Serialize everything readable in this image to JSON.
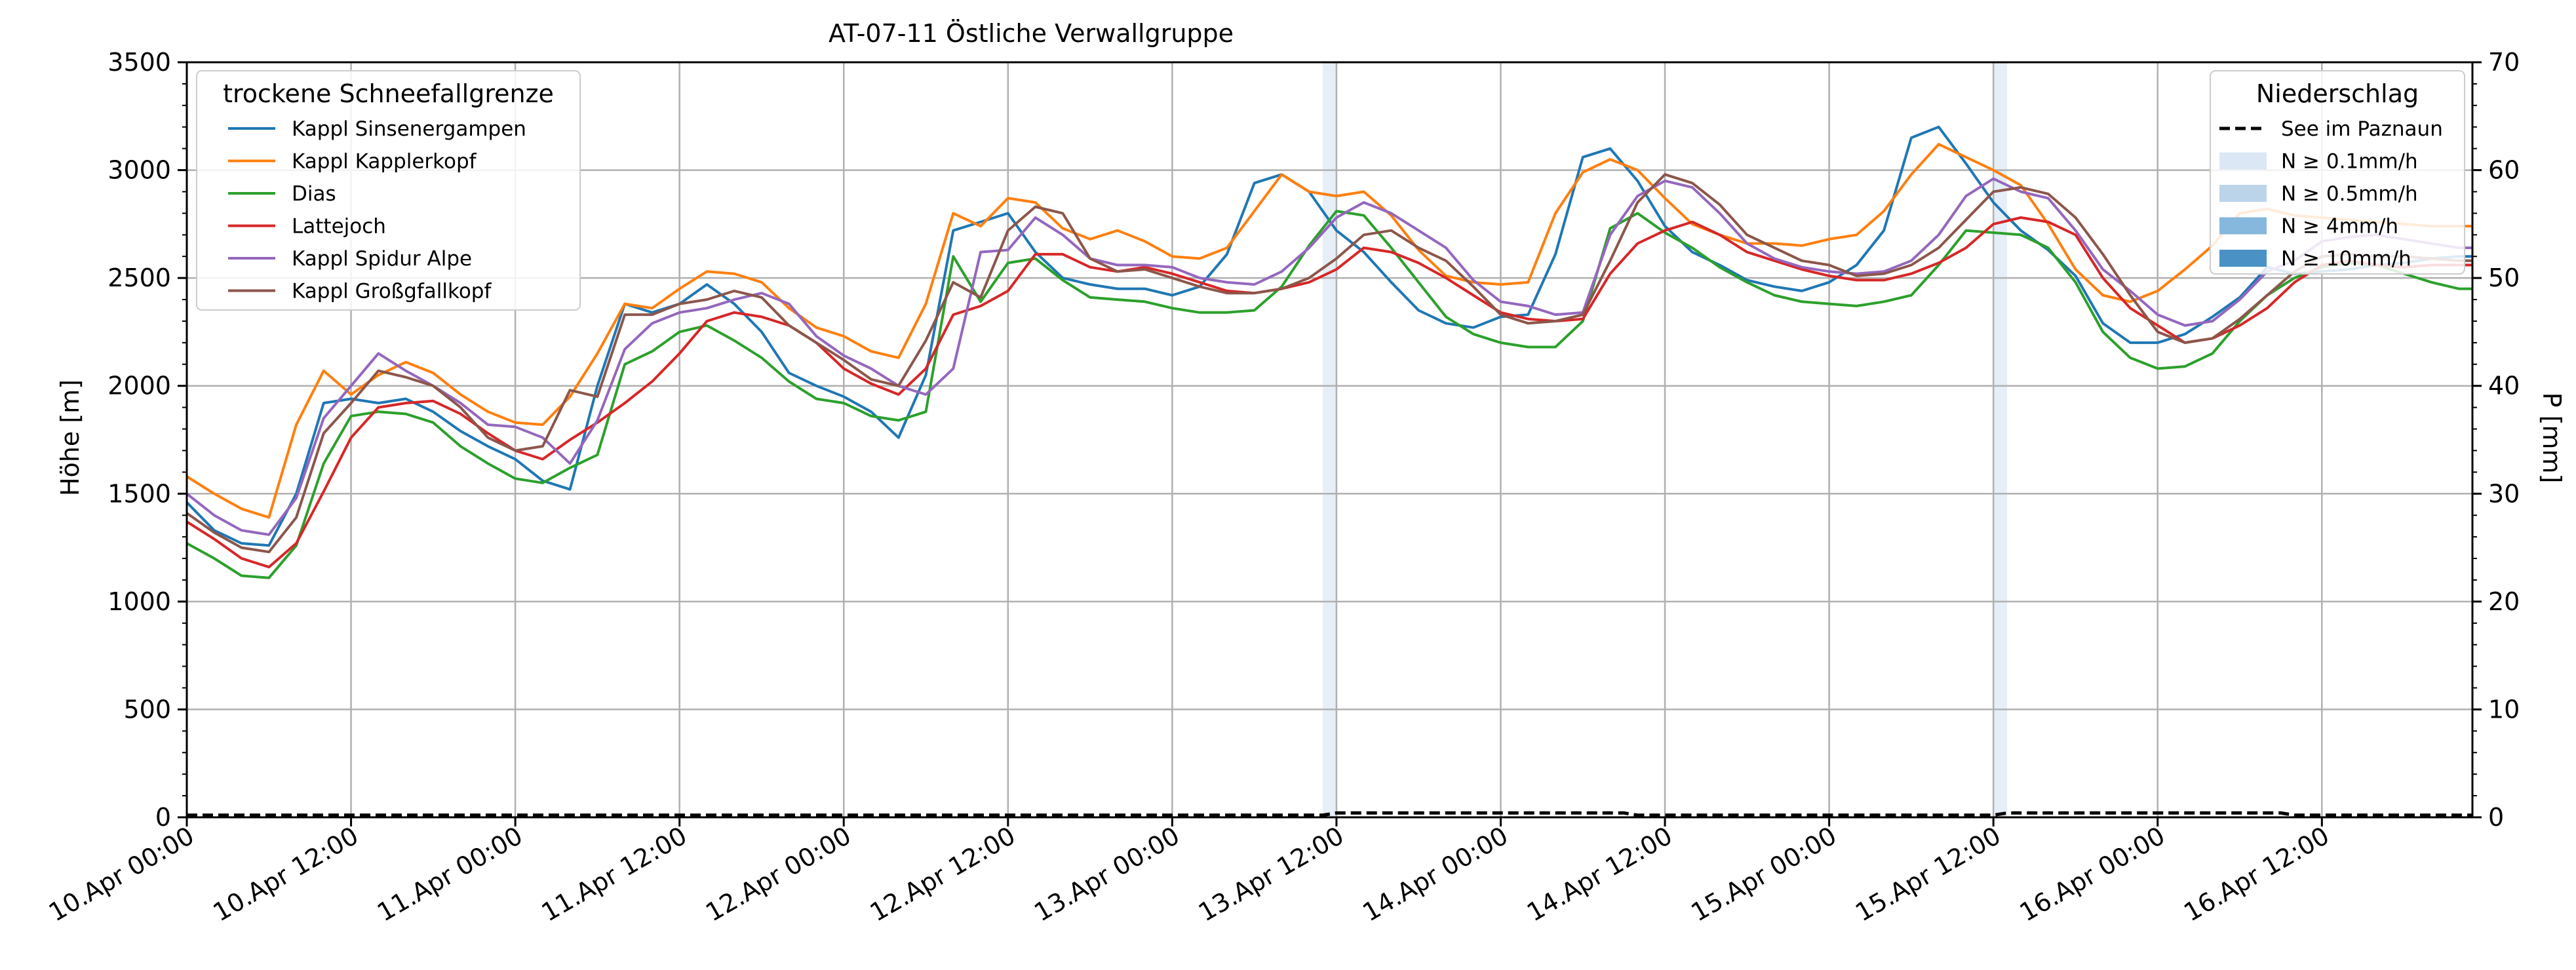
{
  "chart_data": {
    "type": "line",
    "title": "AT-07-11 Östliche Verwallgruppe",
    "ylabel": "Höhe [m]",
    "y2label": "P [mm]",
    "xlim": [
      "2024-04-10 00:00",
      "2024-04-16 23:00"
    ],
    "ylim": [
      0,
      3500
    ],
    "y2lim": [
      0,
      70
    ],
    "grid": true,
    "x_tick_labels": [
      "10.Apr 00:00",
      "10.Apr 12:00",
      "11.Apr 00:00",
      "11.Apr 12:00",
      "12.Apr 00:00",
      "12.Apr 12:00",
      "13.Apr 00:00",
      "13.Apr 12:00",
      "14.Apr 00:00",
      "14.Apr 12:00",
      "15.Apr 00:00",
      "15.Apr 12:00",
      "16.Apr 00:00",
      "16.Apr 12:00"
    ],
    "x_ticks": [
      "2024-04-10 00:00",
      "2024-04-10 12:00",
      "2024-04-11 00:00",
      "2024-04-11 12:00",
      "2024-04-12 00:00",
      "2024-04-12 12:00",
      "2024-04-13 00:00",
      "2024-04-13 12:00",
      "2024-04-14 00:00",
      "2024-04-14 12:00",
      "2024-04-15 00:00",
      "2024-04-15 12:00",
      "2024-04-16 00:00",
      "2024-04-16 12:00"
    ],
    "y_ticks": [
      0,
      500,
      1000,
      1500,
      2000,
      2500,
      3000,
      3500
    ],
    "y2_ticks": [
      0,
      10,
      20,
      30,
      40,
      50,
      60,
      70
    ],
    "legend_left": {
      "title": "trockene Schneefallgrenze",
      "placement": "upper-left"
    },
    "legend_right": {
      "title": "Niederschlag",
      "placement": "upper-right",
      "entries": [
        {
          "label": "See im Paznaun",
          "style": "dashed",
          "color": "#000000"
        },
        {
          "label": "N ≥ 0.1mm/h",
          "color": "#dbe7f4"
        },
        {
          "label": "N ≥ 0.5mm/h",
          "color": "#bcd4ea"
        },
        {
          "label": "N ≥ 4mm/h",
          "color": "#86b7dc"
        },
        {
          "label": "N ≥ 10mm/h",
          "color": "#4a92c6"
        }
      ]
    },
    "precip_bands": [
      {
        "start": "2024-04-13 11:00",
        "end": "2024-04-13 12:00",
        "class": "N ≥ 0.1mm/h"
      },
      {
        "start": "2024-04-15 12:00",
        "end": "2024-04-15 13:00",
        "class": "N ≥ 0.1mm/h"
      }
    ],
    "precip_series": {
      "name": "See im Paznaun",
      "x": [
        "2024-04-10 00:00",
        "2024-04-13 11:00",
        "2024-04-13 12:00",
        "2024-04-14 09:00",
        "2024-04-14 10:00",
        "2024-04-15 12:00",
        "2024-04-15 13:00",
        "2024-04-16 09:00",
        "2024-04-16 10:00",
        "2024-04-16 23:00"
      ],
      "values": [
        0.2,
        0.2,
        0.4,
        0.4,
        0.2,
        0.2,
        0.4,
        0.4,
        0.2,
        0.2
      ]
    },
    "x": [
      "2024-04-10 00:00",
      "2024-04-10 02:00",
      "2024-04-10 04:00",
      "2024-04-10 06:00",
      "2024-04-10 08:00",
      "2024-04-10 10:00",
      "2024-04-10 12:00",
      "2024-04-10 14:00",
      "2024-04-10 16:00",
      "2024-04-10 18:00",
      "2024-04-10 20:00",
      "2024-04-10 22:00",
      "2024-04-11 00:00",
      "2024-04-11 02:00",
      "2024-04-11 04:00",
      "2024-04-11 06:00",
      "2024-04-11 08:00",
      "2024-04-11 10:00",
      "2024-04-11 12:00",
      "2024-04-11 14:00",
      "2024-04-11 16:00",
      "2024-04-11 18:00",
      "2024-04-11 20:00",
      "2024-04-11 22:00",
      "2024-04-12 00:00",
      "2024-04-12 02:00",
      "2024-04-12 04:00",
      "2024-04-12 06:00",
      "2024-04-12 08:00",
      "2024-04-12 10:00",
      "2024-04-12 12:00",
      "2024-04-12 14:00",
      "2024-04-12 16:00",
      "2024-04-12 18:00",
      "2024-04-12 20:00",
      "2024-04-12 22:00",
      "2024-04-13 00:00",
      "2024-04-13 02:00",
      "2024-04-13 04:00",
      "2024-04-13 06:00",
      "2024-04-13 08:00",
      "2024-04-13 10:00",
      "2024-04-13 12:00",
      "2024-04-13 14:00",
      "2024-04-13 16:00",
      "2024-04-13 18:00",
      "2024-04-13 20:00",
      "2024-04-13 22:00",
      "2024-04-14 00:00",
      "2024-04-14 02:00",
      "2024-04-14 04:00",
      "2024-04-14 06:00",
      "2024-04-14 08:00",
      "2024-04-14 10:00",
      "2024-04-14 12:00",
      "2024-04-14 14:00",
      "2024-04-14 16:00",
      "2024-04-14 18:00",
      "2024-04-14 20:00",
      "2024-04-14 22:00",
      "2024-04-15 00:00",
      "2024-04-15 02:00",
      "2024-04-15 04:00",
      "2024-04-15 06:00",
      "2024-04-15 08:00",
      "2024-04-15 10:00",
      "2024-04-15 12:00",
      "2024-04-15 14:00",
      "2024-04-15 16:00",
      "2024-04-15 18:00",
      "2024-04-15 20:00",
      "2024-04-15 22:00",
      "2024-04-16 00:00",
      "2024-04-16 02:00",
      "2024-04-16 04:00",
      "2024-04-16 06:00",
      "2024-04-16 08:00",
      "2024-04-16 10:00",
      "2024-04-16 12:00",
      "2024-04-16 14:00",
      "2024-04-16 16:00",
      "2024-04-16 18:00",
      "2024-04-16 20:00",
      "2024-04-16 22:00",
      "2024-04-16 23:00"
    ],
    "series": [
      {
        "name": "Kappl Sinsenergampen",
        "color": "#1f77b4",
        "values": [
          1460,
          1330,
          1270,
          1260,
          1500,
          1920,
          1940,
          1920,
          1940,
          1880,
          1790,
          1720,
          1660,
          1560,
          1520,
          2000,
          2380,
          2340,
          2380,
          2470,
          2380,
          2250,
          2060,
          2000,
          1950,
          1880,
          1760,
          2050,
          2720,
          2760,
          2800,
          2620,
          2500,
          2470,
          2450,
          2450,
          2420,
          2460,
          2610,
          2940,
          2980,
          2900,
          2720,
          2620,
          2480,
          2350,
          2290,
          2270,
          2320,
          2330,
          2610,
          3060,
          3100,
          2950,
          2740,
          2620,
          2560,
          2490,
          2460,
          2440,
          2480,
          2560,
          2720,
          3150,
          3200,
          3030,
          2850,
          2720,
          2630,
          2510,
          2290,
          2200,
          2200,
          2240,
          2320,
          2410,
          2550,
          2520,
          2530,
          2540,
          2560,
          2570,
          2590,
          2600,
          2600
        ]
      },
      {
        "name": "Kappl Kapplerkopf",
        "color": "#ff7f0e",
        "values": [
          1580,
          1500,
          1430,
          1390,
          1820,
          2070,
          1960,
          2050,
          2110,
          2060,
          1960,
          1880,
          1830,
          1820,
          1950,
          2150,
          2380,
          2360,
          2450,
          2530,
          2520,
          2480,
          2360,
          2270,
          2230,
          2160,
          2130,
          2380,
          2800,
          2740,
          2870,
          2850,
          2730,
          2680,
          2720,
          2670,
          2600,
          2590,
          2640,
          2810,
          2980,
          2900,
          2880,
          2900,
          2790,
          2630,
          2510,
          2480,
          2470,
          2480,
          2800,
          2990,
          3050,
          3000,
          2870,
          2750,
          2700,
          2660,
          2660,
          2650,
          2680,
          2700,
          2810,
          2980,
          3120,
          3060,
          3000,
          2930,
          2750,
          2540,
          2420,
          2390,
          2440,
          2540,
          2650,
          2800,
          2820,
          2790,
          2780,
          2770,
          2760,
          2750,
          2740,
          2740,
          2740
        ]
      },
      {
        "name": "Dias",
        "color": "#2ca02c",
        "values": [
          1270,
          1200,
          1120,
          1110,
          1260,
          1640,
          1860,
          1880,
          1870,
          1830,
          1720,
          1640,
          1570,
          1550,
          1620,
          1680,
          2100,
          2160,
          2250,
          2280,
          2210,
          2130,
          2020,
          1940,
          1920,
          1860,
          1840,
          1880,
          2600,
          2390,
          2570,
          2590,
          2490,
          2410,
          2400,
          2390,
          2360,
          2340,
          2340,
          2350,
          2460,
          2650,
          2810,
          2790,
          2640,
          2480,
          2320,
          2240,
          2200,
          2180,
          2180,
          2300,
          2730,
          2800,
          2710,
          2640,
          2550,
          2480,
          2420,
          2390,
          2380,
          2370,
          2390,
          2420,
          2560,
          2720,
          2710,
          2700,
          2640,
          2480,
          2250,
          2130,
          2080,
          2090,
          2150,
          2300,
          2420,
          2500,
          2550,
          2570,
          2560,
          2520,
          2480,
          2450,
          2450
        ]
      },
      {
        "name": "Lattejoch",
        "color": "#d62728",
        "values": [
          1370,
          1290,
          1200,
          1160,
          1270,
          1510,
          1760,
          1900,
          1920,
          1930,
          1870,
          1780,
          1700,
          1660,
          1750,
          1830,
          1920,
          2020,
          2150,
          2300,
          2340,
          2320,
          2280,
          2200,
          2080,
          2010,
          1960,
          2080,
          2330,
          2370,
          2440,
          2610,
          2610,
          2550,
          2530,
          2550,
          2520,
          2480,
          2440,
          2430,
          2450,
          2480,
          2540,
          2640,
          2620,
          2570,
          2500,
          2420,
          2340,
          2310,
          2300,
          2310,
          2520,
          2660,
          2720,
          2760,
          2700,
          2620,
          2580,
          2540,
          2510,
          2490,
          2490,
          2520,
          2570,
          2640,
          2750,
          2780,
          2760,
          2700,
          2500,
          2360,
          2280,
          2200,
          2220,
          2280,
          2360,
          2480,
          2560,
          2580,
          2560,
          2550,
          2560,
          2560,
          2560
        ]
      },
      {
        "name": "Kappl Spidur Alpe",
        "color": "#9467bd",
        "values": [
          1500,
          1400,
          1330,
          1310,
          1480,
          1850,
          2000,
          2150,
          2070,
          2000,
          1920,
          1820,
          1810,
          1760,
          1640,
          1840,
          2170,
          2290,
          2340,
          2360,
          2400,
          2430,
          2380,
          2230,
          2140,
          2080,
          2000,
          1960,
          2080,
          2620,
          2630,
          2780,
          2700,
          2590,
          2560,
          2560,
          2550,
          2500,
          2480,
          2470,
          2530,
          2640,
          2780,
          2850,
          2800,
          2720,
          2640,
          2490,
          2390,
          2370,
          2330,
          2340,
          2700,
          2880,
          2950,
          2920,
          2800,
          2660,
          2590,
          2550,
          2530,
          2520,
          2530,
          2580,
          2700,
          2880,
          2960,
          2900,
          2870,
          2720,
          2540,
          2440,
          2330,
          2280,
          2300,
          2400,
          2530,
          2580,
          2670,
          2690,
          2700,
          2680,
          2660,
          2640,
          2640
        ]
      },
      {
        "name": "Kappl Großgfallkopf",
        "color": "#8c564b",
        "values": [
          1410,
          1320,
          1250,
          1230,
          1390,
          1780,
          1920,
          2070,
          2040,
          2000,
          1900,
          1760,
          1700,
          1720,
          1980,
          1950,
          2330,
          2330,
          2380,
          2400,
          2440,
          2410,
          2280,
          2200,
          2120,
          2030,
          2000,
          2210,
          2480,
          2410,
          2720,
          2830,
          2800,
          2590,
          2530,
          2540,
          2500,
          2460,
          2430,
          2430,
          2450,
          2500,
          2590,
          2700,
          2720,
          2640,
          2580,
          2460,
          2330,
          2290,
          2300,
          2330,
          2580,
          2850,
          2980,
          2940,
          2840,
          2700,
          2640,
          2580,
          2560,
          2510,
          2520,
          2560,
          2640,
          2770,
          2900,
          2920,
          2890,
          2780,
          2610,
          2420,
          2250,
          2200,
          2220,
          2310,
          2420,
          2530,
          2600,
          2610,
          2600,
          2600,
          2590,
          2580,
          2580
        ]
      }
    ]
  }
}
